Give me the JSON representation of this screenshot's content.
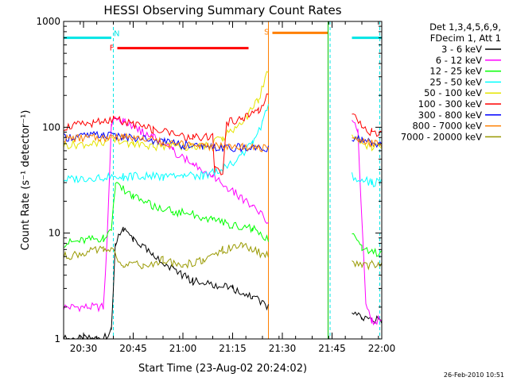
{
  "chart_data": {
    "type": "line",
    "title": "HESSI Observing Summary Count Rates",
    "ylabel": "Count Rate (s⁻¹ detector⁻¹)",
    "xlabel": "Start Time (23-Aug-02 20:24:02)",
    "footer_date": "26-Feb-2010 10:51",
    "y_scale": "log",
    "ylim": [
      1,
      1000
    ],
    "xlim": [
      20.4,
      22.0
    ],
    "y_ticks": [
      {
        "v": 1,
        "label": "1"
      },
      {
        "v": 10,
        "label": "10"
      },
      {
        "v": 100,
        "label": "100"
      },
      {
        "v": 1000,
        "label": "1000"
      }
    ],
    "x_ticks": [
      {
        "v": 20.5,
        "label": "20:30"
      },
      {
        "v": 20.75,
        "label": "20:45"
      },
      {
        "v": 21.0,
        "label": "21:00"
      },
      {
        "v": 21.25,
        "label": "21:15"
      },
      {
        "v": 21.5,
        "label": "21:30"
      },
      {
        "v": 21.75,
        "label": "21:45"
      },
      {
        "v": 22.0,
        "label": "22:00"
      }
    ],
    "legend": {
      "position": "top-right",
      "header": [
        "Det 1,3,4,5,6,9,",
        "FDecim 1, Att 1"
      ]
    },
    "flags": [
      {
        "label": "N",
        "color": "#00e5e5",
        "y": 700,
        "segments": [
          [
            20.4,
            20.64
          ],
          [
            21.85,
            22.0
          ]
        ]
      },
      {
        "label": "F",
        "color": "#ff0000",
        "y": 560,
        "segments": [
          [
            20.67,
            21.33
          ]
        ]
      },
      {
        "label": "S",
        "color": "#ff7f00",
        "y": 780,
        "segments": [
          [
            21.45,
            21.73
          ]
        ]
      }
    ],
    "vlines": [
      {
        "x": 20.4,
        "color": "#00e5e5",
        "dash": true
      },
      {
        "x": 20.65,
        "color": "#00e5e5",
        "dash": true
      },
      {
        "x": 21.43,
        "color": "#ff7f00",
        "dash": false
      },
      {
        "x": 21.73,
        "color": "#00c800",
        "dash": false
      },
      {
        "x": 21.74,
        "color": "#00e5e5",
        "dash": true
      },
      {
        "x": 21.99,
        "color": "#00e5e5",
        "dash": true
      }
    ],
    "series": [
      {
        "name": "3 - 6 keV",
        "color": "#000000",
        "x": [
          20.4,
          20.6,
          20.64,
          20.66,
          20.7,
          20.75,
          20.85,
          20.95,
          21.05,
          21.15,
          21.25,
          21.35,
          21.43,
          21.85,
          21.9,
          21.95,
          22.0
        ],
        "y": [
          1.0,
          1.0,
          1.2,
          8.0,
          11.0,
          9.0,
          6.0,
          4.5,
          3.5,
          3.2,
          3.0,
          2.5,
          2.0,
          1.8,
          1.6,
          1.5,
          1.5
        ]
      },
      {
        "name": "6 - 12 keV",
        "color": "#ff00ff",
        "x": [
          20.4,
          20.6,
          20.62,
          20.64,
          20.66,
          20.7,
          20.75,
          20.85,
          20.95,
          21.05,
          21.15,
          21.25,
          21.35,
          21.43,
          21.85,
          21.88,
          21.92,
          21.95,
          22.0
        ],
        "y": [
          2.0,
          2.0,
          10.0,
          100.0,
          120.0,
          115.0,
          100.0,
          80.0,
          60.0,
          45.0,
          35.0,
          25.0,
          18.0,
          13.0,
          120.0,
          90.0,
          2.0,
          1.5,
          1.5
        ]
      },
      {
        "name": "12 - 25 keV",
        "color": "#00ff00",
        "x": [
          20.4,
          20.6,
          20.64,
          20.66,
          20.7,
          20.75,
          20.85,
          20.95,
          21.05,
          21.15,
          21.25,
          21.35,
          21.43,
          21.85,
          21.9,
          21.95,
          22.0
        ],
        "y": [
          8.0,
          9.0,
          10.0,
          28.0,
          26.0,
          22.0,
          18.0,
          16.0,
          15.0,
          13.0,
          12.0,
          11.0,
          9.0,
          10.0,
          7.0,
          6.5,
          6.5
        ]
      },
      {
        "name": "25 - 50 keV",
        "color": "#00ffff",
        "x": [
          20.4,
          20.6,
          20.7,
          20.8,
          20.9,
          21.0,
          21.1,
          21.2,
          21.3,
          21.35,
          21.4,
          21.43,
          21.85,
          21.9,
          21.95,
          22.0
        ],
        "y": [
          32.0,
          34.0,
          34.0,
          35.0,
          34.0,
          35.0,
          35.0,
          40.0,
          55.0,
          70.0,
          110.0,
          170.0,
          35.0,
          32.0,
          30.0,
          30.0
        ]
      },
      {
        "name": "50 - 100 keV",
        "color": "#e5e500",
        "x": [
          20.4,
          20.55,
          20.65,
          20.75,
          20.85,
          21.0,
          21.1,
          21.2,
          21.3,
          21.38,
          21.43,
          21.85,
          21.9,
          21.95,
          22.0
        ],
        "y": [
          68.0,
          70.0,
          75.0,
          70.0,
          66.0,
          65.0,
          66.0,
          80.0,
          110.0,
          180.0,
          350.0,
          90.0,
          70.0,
          65.0,
          65.0
        ]
      },
      {
        "name": "100 - 300 keV",
        "color": "#ff0000",
        "x": [
          20.4,
          20.55,
          20.65,
          20.75,
          20.85,
          20.95,
          21.05,
          21.15,
          21.16,
          21.2,
          21.22,
          21.3,
          21.38,
          21.43,
          21.85,
          21.9,
          21.95,
          22.0
        ],
        "y": [
          100.0,
          110.0,
          120.0,
          105.0,
          95.0,
          85.0,
          80.0,
          80.0,
          40.0,
          35.0,
          110.0,
          120.0,
          140.0,
          200.0,
          140.0,
          100.0,
          90.0,
          85.0
        ]
      },
      {
        "name": "300 - 800 keV",
        "color": "#0000ff",
        "x": [
          20.4,
          20.6,
          20.7,
          20.8,
          20.9,
          21.0,
          21.1,
          21.15,
          21.2,
          21.3,
          21.43,
          21.85,
          21.9,
          21.95,
          22.0
        ],
        "y": [
          80.0,
          85.0,
          82.0,
          78.0,
          72.0,
          68.0,
          65.0,
          65.0,
          62.0,
          65.0,
          62.0,
          80.0,
          75.0,
          70.0,
          70.0
        ]
      },
      {
        "name": "800 - 7000 keV",
        "color": "#ff7f00",
        "x": [
          20.4,
          20.6,
          20.7,
          20.8,
          20.9,
          21.0,
          21.1,
          21.2,
          21.3,
          21.43,
          21.85,
          21.9,
          21.95,
          22.0
        ],
        "y": [
          78.0,
          80.0,
          82.0,
          78.0,
          72.0,
          68.0,
          66.0,
          66.0,
          65.0,
          62.0,
          75.0,
          72.0,
          70.0,
          70.0
        ]
      },
      {
        "name": "7000 - 20000 keV",
        "color": "#999900",
        "x": [
          20.4,
          20.6,
          20.64,
          20.7,
          20.8,
          20.9,
          21.0,
          21.1,
          21.2,
          21.3,
          21.43,
          21.85,
          21.9,
          21.95,
          22.0
        ],
        "y": [
          6.0,
          7.0,
          7.0,
          5.0,
          5.0,
          5.5,
          5.0,
          5.5,
          7.0,
          7.5,
          6.0,
          5.0,
          5.0,
          5.0,
          5.0
        ]
      }
    ]
  }
}
